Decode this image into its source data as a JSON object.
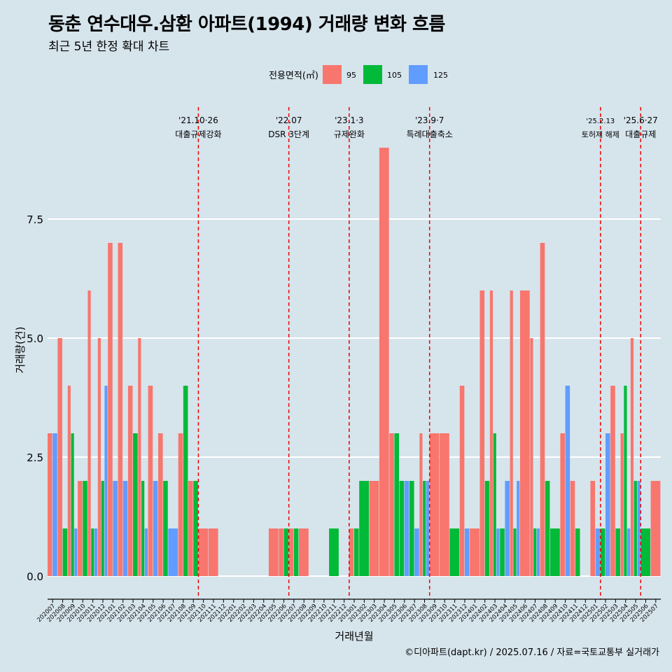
{
  "title": "동춘 연수대우.삼환 아파트(1994) 거래량 변화 흐름",
  "subtitle": "최근 5년 한정 확대 차트",
  "caption": "©디아파트(dapt.kr) / 2025.07.16 / 자료=국토교통부 실거래가",
  "colors": {
    "background": "#d6e4ec",
    "s95": "#f8766d",
    "s105": "#00ba38",
    "s125": "#619cff",
    "vline": "#ee0000",
    "grid": "#ffffff"
  },
  "chart_data": {
    "type": "bar",
    "xlabel": "거래년월",
    "ylabel": "거래량(건)",
    "ylim": [
      -0.5,
      9.5
    ],
    "yticks": [
      "0.0",
      "2.5",
      "5.0",
      "7.5"
    ],
    "ytick_values": [
      0,
      2.5,
      5,
      7.5
    ],
    "grid": true,
    "legend": {
      "title": "전용면적(㎡)",
      "placement": "top"
    },
    "categories": [
      "202007",
      "202008",
      "202009",
      "202010",
      "202011",
      "202012",
      "202101",
      "202102",
      "202103",
      "202104",
      "202105",
      "202106",
      "202107",
      "202108",
      "202109",
      "202110",
      "202111",
      "202112",
      "202201",
      "202202",
      "202203",
      "202204",
      "202205",
      "202206",
      "202207",
      "202208",
      "202209",
      "202210",
      "202211",
      "202212",
      "202301",
      "202302",
      "202303",
      "202304",
      "202305",
      "202306",
      "202307",
      "202308",
      "202309",
      "202310",
      "202311",
      "202312",
      "202401",
      "202402",
      "202403",
      "202404",
      "202405",
      "202406",
      "202407",
      "202408",
      "202409",
      "202410",
      "202411",
      "202412",
      "202501",
      "202502",
      "202503",
      "202504",
      "202505",
      "202506",
      "202507"
    ],
    "series": [
      {
        "name": "95",
        "values": [
          3,
          5,
          4,
          2,
          6,
          5,
          7,
          7,
          4,
          5,
          4,
          3,
          0,
          3,
          2,
          1,
          1,
          0,
          0,
          0,
          0,
          0,
          1,
          1,
          1,
          1,
          0,
          0,
          0,
          0,
          1,
          0,
          2,
          9,
          3,
          0,
          0,
          3,
          3,
          3,
          0,
          4,
          1,
          6,
          6,
          0,
          6,
          6,
          5,
          7,
          0,
          3,
          2,
          0,
          2,
          0,
          4,
          3,
          5,
          0,
          2
        ]
      },
      {
        "name": "105",
        "values": [
          0,
          1,
          3,
          2,
          1,
          2,
          0,
          0,
          3,
          2,
          0,
          2,
          0,
          4,
          2,
          0,
          0,
          0,
          0,
          0,
          0,
          0,
          0,
          1,
          1,
          0,
          0,
          0,
          1,
          0,
          1,
          2,
          0,
          0,
          3,
          2,
          2,
          2,
          0,
          0,
          1,
          0,
          0,
          2,
          3,
          1,
          1,
          0,
          1,
          2,
          1,
          0,
          1,
          0,
          0,
          1,
          1,
          4,
          2,
          1,
          0
        ]
      },
      {
        "name": "125",
        "values": [
          3,
          0,
          1,
          0,
          1,
          4,
          2,
          2,
          0,
          1,
          2,
          0,
          1,
          0,
          0,
          0,
          0,
          0,
          0,
          0,
          0,
          0,
          0,
          0,
          0,
          0,
          0,
          0,
          0,
          0,
          0,
          0,
          0,
          0,
          0,
          2,
          1,
          2,
          0,
          0,
          0,
          1,
          0,
          0,
          1,
          2,
          2,
          0,
          1,
          0,
          0,
          4,
          0,
          0,
          1,
          3,
          0,
          1,
          2,
          0,
          0
        ]
      }
    ],
    "annotations": [
      {
        "x": "202110",
        "date": "'21.10·26",
        "label": "대출규제강화"
      },
      {
        "x": "202207",
        "date": "'22.07",
        "label": "DSR 3단계"
      },
      {
        "x": "202301",
        "date": "'23.1·3",
        "label": "규제완화"
      },
      {
        "x": "202309",
        "date": "'23.9·7",
        "label": "특례대출축소"
      },
      {
        "x": "202502",
        "date": "'25.2.13",
        "label": "토허제 해제"
      },
      {
        "x": "202506",
        "date": "'25.6·27",
        "label": "대출규제"
      }
    ]
  }
}
